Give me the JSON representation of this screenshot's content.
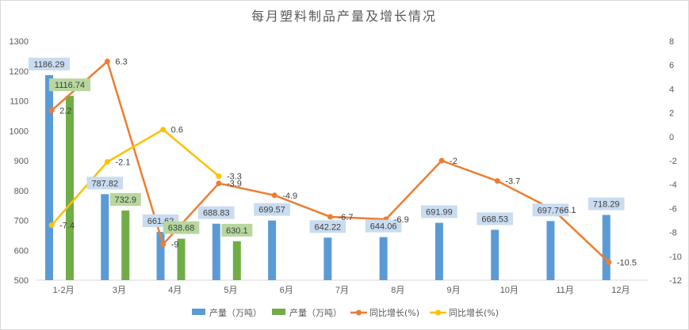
{
  "colors": {
    "bar_a": "#5b9bd5",
    "bar_b": "#70ad47",
    "line_a": "#ed7d31",
    "line_b": "#ffc000",
    "label_bg_a": "#c9dcf0",
    "label_bg_b": "#b7d79e",
    "axis_text": "#595959"
  },
  "chart_data": {
    "type": "bar",
    "title": "每月塑料制品产量及增长情况",
    "categories": [
      "1-2月",
      "3月",
      "4月",
      "5月",
      "6月",
      "7月",
      "8月",
      "9月",
      "10月",
      "11月",
      "12月"
    ],
    "y_left": {
      "min": 500,
      "max": 1300,
      "step": 100,
      "ticks": [
        "500",
        "600",
        "700",
        "800",
        "900",
        "1000",
        "1100",
        "1200",
        "1300"
      ]
    },
    "y_right": {
      "min": -12,
      "max": 8,
      "step": 2,
      "ticks": [
        "-12",
        "-10",
        "-8",
        "-6",
        "-4",
        "-2",
        "0",
        "2",
        "4",
        "6",
        "8"
      ]
    },
    "grid": false,
    "legend_position": "bottom",
    "series": [
      {
        "name": "产量（万吨）",
        "kind": "bar",
        "axis": "left",
        "values": [
          1186.29,
          787.82,
          661.62,
          688.83,
          699.57,
          642.22,
          644.06,
          691.99,
          668.53,
          697.76,
          718.29
        ],
        "labels": [
          "1186.29",
          "787.82",
          "661.62",
          "688.83",
          "699.57",
          "642.22",
          "644.06",
          "691.99",
          "668.53",
          "697.76",
          "718.29"
        ]
      },
      {
        "name": "产量（万吨）",
        "kind": "bar",
        "axis": "left",
        "values": [
          1116.74,
          732.9,
          638.68,
          630.1,
          null,
          null,
          null,
          null,
          null,
          null,
          null
        ],
        "labels": [
          "1116.74",
          "732.9",
          "638.68",
          "630.1",
          null,
          null,
          null,
          null,
          null,
          null,
          null
        ]
      },
      {
        "name": "同比增长(%)",
        "kind": "line",
        "axis": "right",
        "values": [
          2.2,
          6.3,
          -9,
          -3.9,
          -4.9,
          -6.7,
          -6.9,
          -2,
          -3.7,
          -6.1,
          -10.5
        ],
        "labels": [
          "2.2",
          "6.3",
          "-9",
          "-3.9",
          "-4.9",
          "-6.7",
          "-6.9",
          "-2",
          "-3.7",
          "-6.1",
          "-10.5"
        ]
      },
      {
        "name": "同比增长(%)",
        "kind": "line",
        "axis": "right",
        "values": [
          -7.4,
          -2.1,
          0.6,
          -3.3,
          null,
          null,
          null,
          null,
          null,
          null,
          null
        ],
        "labels": [
          "-7.4",
          "-2.1",
          "0.6",
          "-3.3",
          null,
          null,
          null,
          null,
          null,
          null,
          null
        ]
      }
    ]
  }
}
